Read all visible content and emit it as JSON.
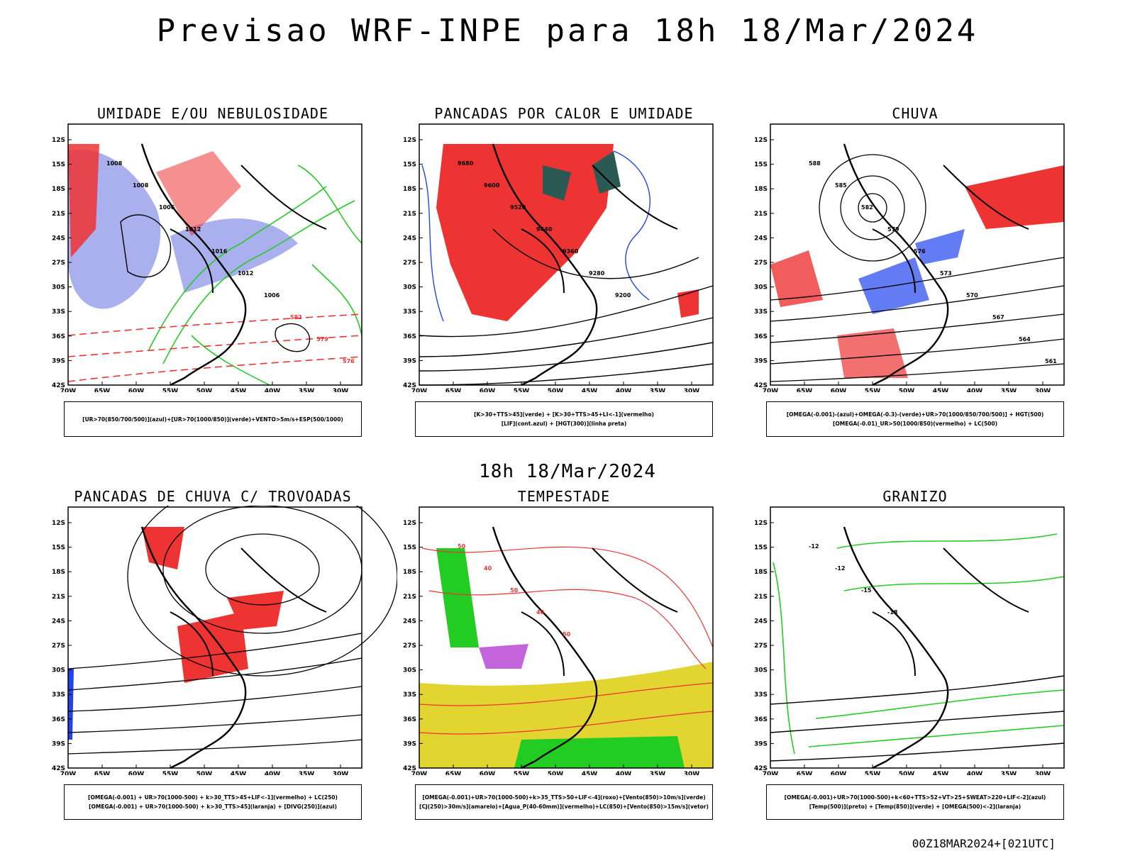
{
  "title": "Previsao WRF-INPE  para 18h 18/Mar/2024",
  "subtitle": "18h 18/Mar/2024",
  "footer": "00Z18MAR2024+[021UTC]",
  "axes": {
    "lat_labels": [
      "12S",
      "15S",
      "18S",
      "21S",
      "24S",
      "27S",
      "30S",
      "33S",
      "36S",
      "39S",
      "42S"
    ],
    "lon_labels": [
      "70W",
      "65W",
      "60W",
      "55W",
      "50W",
      "45W",
      "40W",
      "35W",
      "30W"
    ]
  },
  "panels": [
    {
      "title": "UMIDADE E/OU NEBULOSIDADE",
      "legend": [
        "[UR>70(850/700/500)](azul)+[UR>70(1000/850)](verde)+VENTO>5m/s+ESP(500/1000)"
      ],
      "contour_labels": [
        "1008",
        "1008",
        "1006",
        "1012",
        "1016",
        "1012",
        "1006",
        "582",
        "579",
        "576"
      ]
    },
    {
      "title": "PANCADAS POR CALOR E UMIDADE",
      "legend": [
        "[K>30+TTS>45](verde) + [K>30+TTS>45+LI<-1](vermelho)",
        "[LIF](cont.azul) + [HGT(300)](linha preta)"
      ],
      "contour_labels": [
        "9680",
        "9600",
        "9520",
        "9440",
        "9360",
        "9280",
        "9200"
      ]
    },
    {
      "title": "CHUVA",
      "legend": [
        "[OMEGA(-0.001)-(azul)+OMEGA(-0.3)-(verde)+UR>70(1000/850/700/500)] + HGT(500)",
        "[OMEGA(-0.01)_UR>50(1000/850)(vermelho) + LC(500)"
      ],
      "contour_labels": [
        "588",
        "585",
        "582",
        "579",
        "576",
        "573",
        "570",
        "567",
        "564",
        "561"
      ]
    },
    {
      "title": "PANCADAS DE CHUVA C/ TROVOADAS",
      "legend": [
        "[OMEGA(-0.001) + UR>70(1000-500) + k>30_TTS>45+LIF<-1](vermelho) + LC(250)",
        "[OMEGA(-0.001) + UR>70(1000-500) + k>30_TTS>45](laranja) + [DIVG(250)](azul)"
      ],
      "contour_labels": []
    },
    {
      "title": "TEMPESTADE",
      "legend": [
        "[OMEGA(-0.001)+UR>70(1000-500)+k>35_TTS>50+LIF<-4](roxo)+[Vento(850)>10m/s](verde)",
        "[CJ(250)>30m/s](amarelo)+[Agua_P(40-60mm)](vermelho)+LC(850)+[Vento(850)>15m/s](vetor)"
      ],
      "contour_labels": [
        "50",
        "40",
        "50",
        "40",
        "50"
      ]
    },
    {
      "title": "GRANIZO",
      "legend": [
        "[OMEGA(-0.001)+UR>70(1000-500)+k<60+TTS>52+VT>25+SWEAT>220+LIF<-2](azul)",
        "[Temp(500)](preto) + [Temp(850)](verde) + [OMEGA(500)<-2](laranja)"
      ],
      "contour_labels": [
        "-12",
        "-12",
        "-15",
        "-18"
      ]
    }
  ],
  "colors": {
    "red": "#ee3333",
    "green": "#22cc22",
    "blue": "#2244ee",
    "lavender": "#aab0ee",
    "teal": "#2b5a55",
    "yellow": "#e2d532",
    "purple": "#aa22cc",
    "orange": "#ee8800"
  }
}
